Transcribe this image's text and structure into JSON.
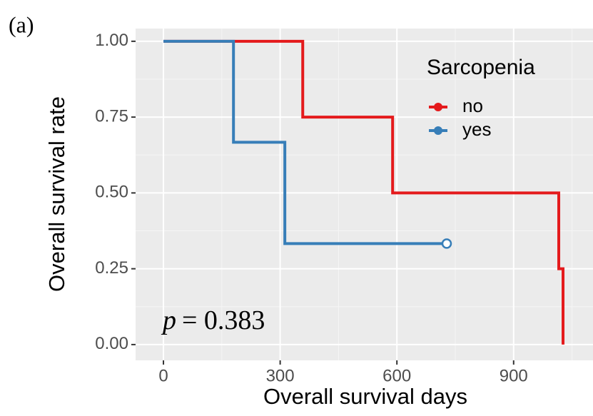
{
  "chart_data": {
    "type": "step",
    "panel_label": "(a)",
    "annotation": {
      "symbol": "p",
      "text": "= 0.383"
    },
    "xlabel": "Overall survival days",
    "ylabel": "Overall survival rate",
    "legend_title": "Sarcopenia",
    "legend_position": "top-right",
    "xlim": [
      -71.6,
      1104
    ],
    "ylim": [
      -0.052,
      1.042
    ],
    "xticks": [
      0,
      300,
      600,
      900
    ],
    "yticks": [
      {
        "value": 0,
        "label": "0.00"
      },
      {
        "value": 0.25,
        "label": "0.25"
      },
      {
        "value": 0.5,
        "label": "0.50"
      },
      {
        "value": 0.75,
        "label": "0.75"
      },
      {
        "value": 1,
        "label": "1.00"
      }
    ],
    "grid": true,
    "series": [
      {
        "name": "no",
        "color": "#e41a1c",
        "x": [
          0,
          358,
          589,
          1016,
          1027
        ],
        "values": [
          1,
          0.75,
          0.5,
          0.25,
          0
        ]
      },
      {
        "name": "yes",
        "color": "#377eb8",
        "x": [
          0,
          180,
          312
        ],
        "values": [
          1,
          0.667,
          0.333
        ],
        "censor_x": [
          728
        ],
        "censor_values": [
          0.333
        ]
      }
    ]
  }
}
